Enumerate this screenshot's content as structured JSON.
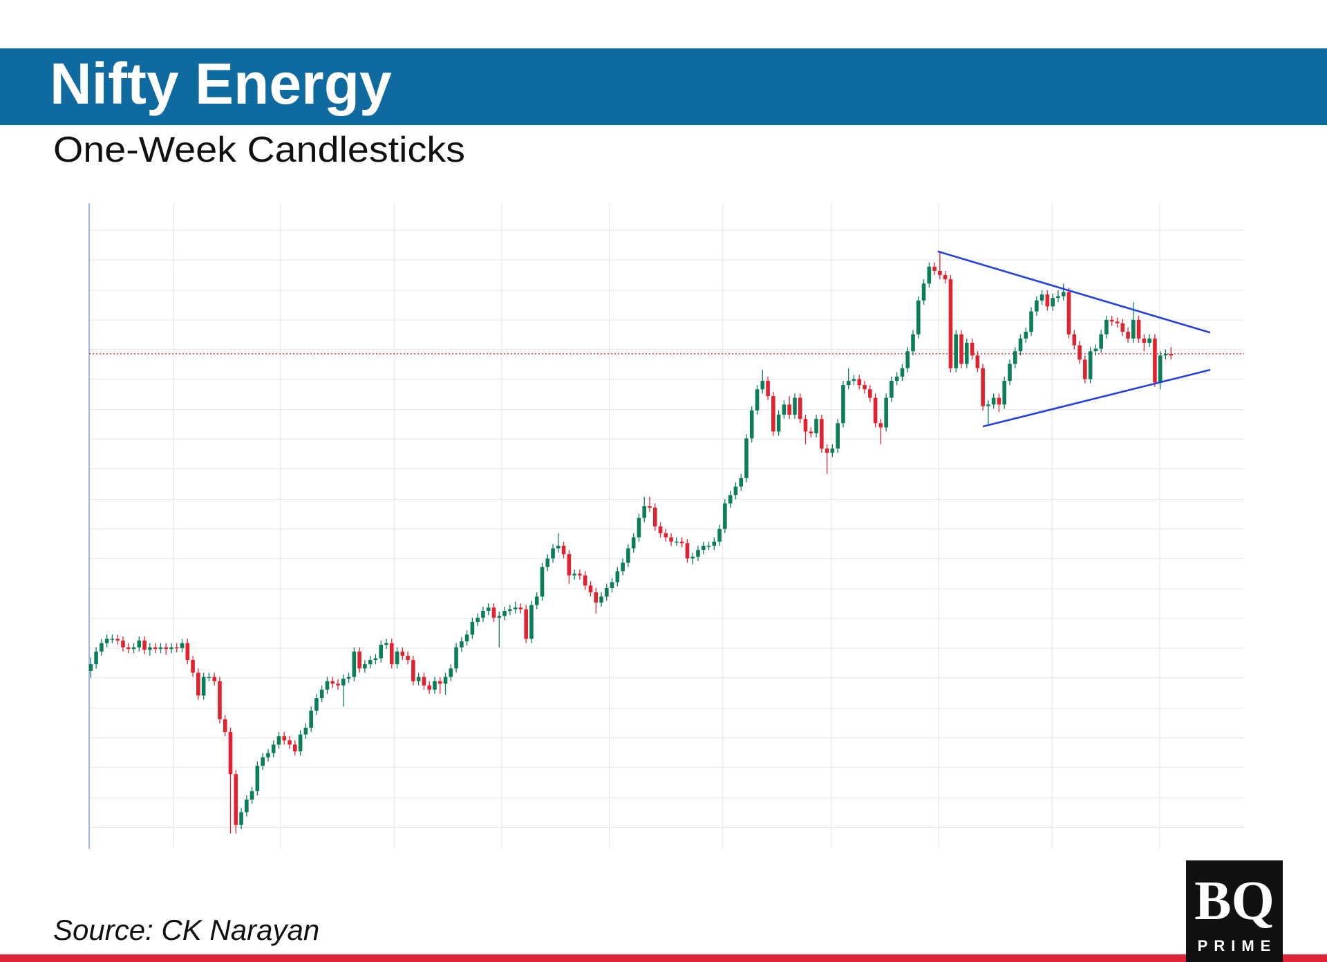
{
  "chart_data": {
    "type": "candlestick",
    "title": "Nifty Energy",
    "subtitle": "One-Week Candlesticks",
    "source": "Source: CK Narayan",
    "up_color": "#0b7d57",
    "down_color": "#e0232f",
    "grid": true,
    "xlim": [
      -0.3,
      214.6
    ],
    "xticks": [
      15.4,
      35.3,
      56.5,
      76.5,
      96.5,
      117.6,
      137.8,
      157.8,
      178.9,
      198.9
    ],
    "ylim": [
      0,
      76.3
    ],
    "yticks": [
      2.5,
      6.0,
      9.6,
      13.1,
      16.6,
      20.2,
      23.7,
      27.2,
      30.7,
      34.3,
      37.8,
      41.3,
      44.9,
      48.4,
      51.9,
      55.5,
      59.0,
      62.5,
      66.0,
      69.6,
      73.1
    ],
    "open": [
      21.0,
      21.8,
      23.3,
      24.3,
      24.8,
      24.8,
      24.6,
      23.8,
      23.6,
      23.8,
      24.6,
      23.5,
      23.8,
      23.6,
      23.8,
      23.6,
      23.8,
      23.7,
      24.3,
      22.3,
      20.8,
      18.1,
      20.3,
      20.3,
      19.8,
      15.3,
      13.8,
      8.8,
      2.8,
      4.3,
      5.8,
      6.8,
      9.8,
      10.8,
      11.3,
      12.3,
      13.3,
      12.8,
      12.3,
      11.5,
      13.5,
      14.3,
      16.3,
      17.8,
      18.8,
      19.8,
      19.5,
      19.3,
      20.1,
      20.3,
      23.3,
      21.3,
      21.8,
      22.3,
      22.5,
      24.1,
      24.3,
      21.8,
      23.3,
      22.8,
      22.3,
      19.8,
      20.3,
      19.3,
      18.8,
      19.8,
      19.5,
      20.3,
      21.3,
      23.8,
      24.5,
      25.3,
      26.8,
      27.3,
      28.1,
      28.5,
      27.3,
      27.5,
      28.1,
      28.3,
      28.5,
      28.3,
      24.8,
      28.8,
      29.8,
      33.3,
      34.3,
      35.5,
      35.8,
      34.8,
      32.3,
      32.5,
      32.3,
      31.1,
      30.3,
      29.1,
      29.8,
      30.8,
      31.5,
      32.8,
      33.8,
      35.5,
      36.8,
      39.1,
      40.5,
      40.3,
      38.1,
      37.3,
      36.8,
      36.3,
      36.3,
      36.1,
      34.3,
      34.5,
      35.3,
      35.8,
      35.8,
      36.3,
      37.8,
      40.8,
      41.8,
      42.8,
      43.8,
      48.5,
      51.8,
      54.3,
      55.3,
      53.5,
      49.3,
      51.3,
      52.5,
      51.3,
      53.3,
      50.8,
      49.3,
      49.1,
      50.8,
      47.3,
      46.8,
      47.3,
      50.3,
      54.8,
      55.3,
      55.5,
      54.8,
      54.3,
      53.3,
      50.3,
      49.8,
      53.3,
      55.3,
      55.8,
      56.8,
      58.8,
      60.8,
      64.8,
      66.8,
      68.8,
      68.3,
      67.8,
      67.3,
      56.8,
      60.8,
      57.3,
      59.8,
      58.3,
      56.8,
      52.3,
      52.5,
      53.3,
      52.5,
      55.3,
      57.3,
      58.8,
      60.3,
      61.1,
      63.5,
      64.8,
      65.5,
      64.1,
      65.1,
      65.3,
      65.8,
      60.8,
      59.5,
      57.8,
      55.5,
      58.8,
      59.1,
      60.8,
      62.5,
      62.3,
      62.1,
      61.1,
      60.3,
      62.5,
      60.3,
      59.8,
      60.3,
      55.1,
      58.3,
      58.5
    ],
    "high": [
      22.6,
      23.8,
      24.8,
      25.3,
      25.3,
      25.3,
      25.1,
      24.3,
      24.3,
      25.1,
      25.1,
      24.3,
      24.3,
      24.3,
      24.3,
      24.3,
      24.3,
      24.8,
      24.8,
      22.8,
      21.3,
      20.8,
      20.8,
      20.8,
      20.3,
      15.8,
      14.3,
      9.3,
      4.8,
      6.3,
      7.3,
      10.3,
      11.3,
      11.8,
      12.8,
      13.8,
      13.8,
      13.3,
      12.8,
      14.0,
      14.8,
      16.8,
      18.3,
      19.3,
      20.3,
      20.3,
      20.0,
      20.6,
      20.8,
      23.8,
      23.8,
      22.3,
      22.8,
      23.0,
      24.6,
      24.8,
      24.8,
      23.8,
      23.8,
      23.3,
      22.8,
      20.8,
      20.8,
      19.8,
      20.3,
      20.3,
      20.8,
      21.8,
      24.3,
      25.0,
      25.8,
      27.3,
      27.8,
      28.6,
      29.0,
      29.0,
      28.0,
      28.6,
      28.8,
      29.2,
      29.0,
      28.8,
      29.3,
      30.3,
      33.8,
      34.8,
      36.0,
      37.3,
      36.3,
      35.3,
      33.0,
      33.0,
      32.8,
      31.6,
      30.8,
      30.3,
      31.3,
      32.0,
      33.3,
      34.3,
      36.0,
      37.3,
      39.6,
      41.6,
      41.6,
      40.8,
      38.6,
      37.8,
      37.3,
      36.8,
      36.8,
      36.6,
      35.0,
      35.8,
      36.3,
      36.3,
      36.8,
      38.3,
      41.3,
      42.3,
      43.3,
      44.3,
      49.0,
      52.3,
      54.8,
      56.6,
      55.8,
      54.0,
      51.8,
      53.0,
      53.5,
      53.8,
      53.8,
      51.3,
      49.8,
      51.3,
      51.3,
      47.8,
      47.8,
      50.8,
      55.3,
      56.8,
      56.0,
      56.0,
      55.3,
      54.8,
      53.8,
      50.8,
      53.8,
      55.8,
      56.3,
      57.3,
      59.3,
      61.3,
      65.3,
      67.3,
      69.3,
      69.3,
      70.6,
      68.3,
      67.8,
      61.3,
      61.3,
      60.3,
      60.3,
      58.8,
      57.3,
      53.0,
      53.8,
      53.8,
      55.8,
      57.8,
      59.3,
      60.8,
      61.6,
      64.0,
      65.3,
      66.0,
      66.0,
      65.6,
      66.0,
      66.8,
      66.3,
      61.3,
      60.0,
      58.3,
      59.3,
      59.6,
      61.3,
      63.0,
      63.0,
      62.8,
      62.6,
      61.6,
      64.6,
      63.0,
      60.8,
      60.8,
      60.8,
      58.8,
      59.0,
      59.3
    ],
    "low": [
      20.2,
      21.3,
      22.8,
      23.8,
      24.3,
      24.1,
      23.3,
      23.1,
      23.1,
      23.3,
      23.0,
      22.8,
      23.1,
      23.1,
      22.9,
      23.1,
      23.2,
      23.2,
      21.8,
      20.3,
      17.6,
      17.6,
      19.8,
      19.3,
      14.8,
      13.3,
      1.8,
      1.8,
      2.3,
      3.8,
      5.3,
      6.3,
      9.3,
      10.3,
      10.8,
      11.8,
      12.3,
      11.8,
      11.0,
      11.0,
      13.0,
      13.8,
      15.8,
      17.3,
      18.3,
      19.0,
      18.8,
      16.8,
      19.6,
      19.8,
      20.8,
      20.8,
      21.3,
      21.8,
      22.0,
      23.6,
      21.3,
      21.3,
      22.3,
      21.8,
      19.3,
      19.3,
      18.8,
      18.3,
      18.3,
      18.3,
      18.2,
      19.8,
      20.8,
      23.3,
      24.0,
      24.8,
      26.3,
      26.8,
      27.6,
      26.8,
      23.8,
      27.0,
      27.6,
      27.8,
      27.8,
      24.3,
      24.3,
      28.3,
      29.3,
      32.8,
      33.8,
      35.0,
      34.3,
      31.3,
      31.8,
      31.8,
      30.6,
      29.8,
      27.8,
      28.6,
      29.3,
      30.3,
      31.0,
      32.3,
      33.3,
      35.0,
      36.3,
      38.6,
      39.8,
      37.6,
      36.8,
      36.3,
      35.8,
      35.8,
      35.6,
      33.8,
      33.6,
      34.0,
      34.8,
      35.3,
      35.3,
      35.8,
      37.3,
      40.3,
      41.3,
      42.3,
      43.3,
      48.0,
      51.3,
      53.8,
      53.0,
      48.8,
      48.8,
      50.8,
      50.8,
      50.8,
      50.3,
      47.8,
      48.6,
      48.6,
      46.8,
      44.3,
      46.3,
      46.8,
      49.8,
      54.3,
      54.8,
      54.3,
      53.8,
      52.8,
      49.8,
      47.8,
      49.3,
      52.8,
      54.8,
      55.3,
      56.3,
      58.3,
      60.3,
      64.3,
      66.3,
      67.8,
      67.3,
      66.8,
      56.3,
      56.3,
      56.8,
      56.8,
      57.8,
      56.3,
      51.8,
      50.0,
      52.0,
      51.6,
      52.0,
      54.8,
      56.8,
      58.3,
      59.8,
      60.6,
      63.0,
      64.3,
      63.6,
      63.6,
      64.6,
      64.8,
      60.3,
      59.0,
      57.3,
      55.0,
      55.0,
      58.3,
      58.6,
      60.3,
      61.8,
      61.6,
      60.6,
      59.8,
      59.8,
      59.8,
      58.8,
      59.3,
      54.6,
      54.3,
      57.8,
      57.8
    ],
    "close": [
      21.8,
      23.3,
      24.3,
      24.8,
      24.8,
      24.6,
      23.8,
      23.6,
      23.8,
      24.6,
      23.5,
      23.8,
      23.6,
      23.8,
      23.6,
      23.8,
      23.7,
      24.3,
      22.3,
      20.8,
      18.1,
      20.3,
      20.3,
      19.8,
      15.3,
      13.8,
      8.8,
      2.8,
      4.3,
      5.8,
      6.8,
      9.8,
      10.8,
      11.3,
      12.3,
      13.3,
      12.8,
      12.3,
      11.5,
      13.5,
      14.3,
      16.3,
      17.8,
      18.8,
      19.8,
      19.5,
      19.3,
      20.1,
      20.3,
      23.3,
      21.3,
      21.8,
      22.3,
      22.5,
      24.1,
      24.3,
      21.8,
      23.3,
      22.8,
      22.3,
      19.8,
      20.3,
      19.3,
      18.8,
      19.8,
      19.5,
      20.3,
      21.3,
      23.8,
      24.5,
      25.3,
      26.8,
      27.3,
      28.1,
      28.5,
      27.3,
      27.5,
      28.1,
      28.3,
      28.5,
      28.3,
      24.8,
      28.8,
      29.8,
      33.3,
      34.3,
      35.5,
      35.8,
      34.8,
      32.3,
      32.5,
      32.3,
      31.1,
      30.3,
      29.1,
      29.8,
      30.8,
      31.5,
      32.8,
      33.8,
      35.5,
      36.8,
      39.1,
      40.5,
      40.3,
      38.1,
      37.3,
      36.8,
      36.3,
      36.3,
      36.1,
      34.3,
      34.5,
      35.3,
      35.8,
      35.8,
      36.3,
      37.8,
      40.8,
      41.8,
      42.8,
      43.8,
      48.5,
      51.8,
      54.3,
      55.3,
      53.5,
      49.3,
      51.3,
      52.5,
      51.3,
      53.3,
      50.8,
      49.3,
      49.1,
      50.8,
      47.3,
      46.8,
      47.3,
      50.3,
      54.8,
      55.3,
      55.5,
      54.8,
      54.3,
      53.3,
      50.3,
      49.8,
      53.3,
      55.3,
      55.8,
      56.8,
      58.8,
      60.8,
      64.8,
      66.8,
      68.8,
      68.3,
      67.8,
      67.3,
      56.8,
      60.8,
      57.3,
      59.8,
      58.3,
      56.8,
      52.3,
      52.5,
      53.3,
      52.5,
      55.3,
      57.3,
      58.8,
      60.3,
      61.1,
      63.5,
      64.8,
      65.5,
      64.1,
      65.1,
      65.3,
      65.8,
      60.8,
      59.5,
      57.8,
      55.5,
      58.8,
      59.1,
      60.8,
      62.5,
      62.3,
      62.1,
      61.1,
      60.3,
      62.5,
      60.3,
      59.8,
      60.3,
      55.1,
      58.3,
      58.5,
      58.3
    ],
    "trendlines": [
      {
        "color": "#2340e0",
        "x": [
          157.6,
          208.3
        ],
        "y": [
          70.6,
          61.0
        ]
      },
      {
        "color": "#2340e0",
        "x": [
          166.0,
          208.3
        ],
        "y": [
          49.9,
          56.6
        ]
      }
    ],
    "hlines": [
      {
        "color": "#e0232f",
        "y": 58.5
      }
    ]
  },
  "logo": {
    "name": "BQ",
    "tagline": "PRIME"
  }
}
